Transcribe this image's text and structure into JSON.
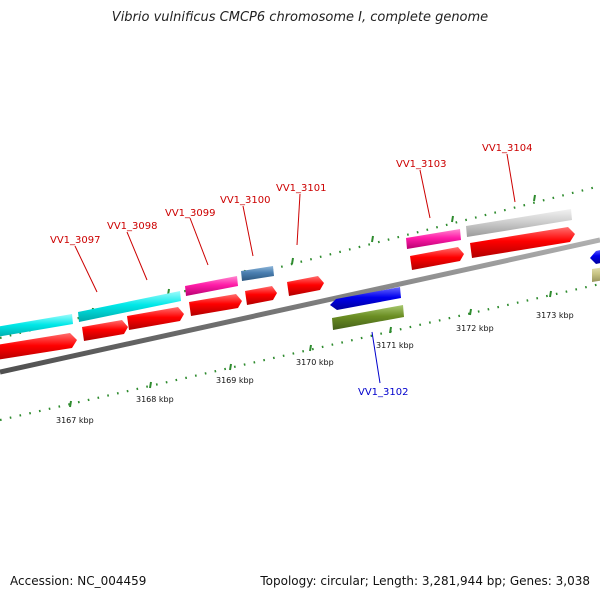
{
  "title": "Vibrio vulnificus CMCP6 chromosome I, complete genome",
  "footer": {
    "accession": "Accession: NC_004459",
    "summary": "Topology: circular; Length: 3,281,944 bp; Genes: 3,038"
  },
  "colors": {
    "backbone": "#808080",
    "dots": "#2e8b2e",
    "label_forward": "#cc0000",
    "label_reverse": "#0000cc"
  },
  "kbp_labels": [
    "3167 kbp",
    "3168 kbp",
    "3169 kbp",
    "3170 kbp",
    "3171 kbp",
    "3172 kbp",
    "3173 kbp"
  ],
  "gene_labels": [
    {
      "text": "VV1_3097",
      "strand": "forward"
    },
    {
      "text": "VV1_3098",
      "strand": "forward"
    },
    {
      "text": "VV1_3099",
      "strand": "forward"
    },
    {
      "text": "VV1_3100",
      "strand": "forward"
    },
    {
      "text": "VV1_3101",
      "strand": "forward"
    },
    {
      "text": "VV1_3102",
      "strand": "reverse"
    },
    {
      "text": "VV1_3103",
      "strand": "forward"
    },
    {
      "text": "VV1_3104",
      "strand": "forward"
    }
  ]
}
